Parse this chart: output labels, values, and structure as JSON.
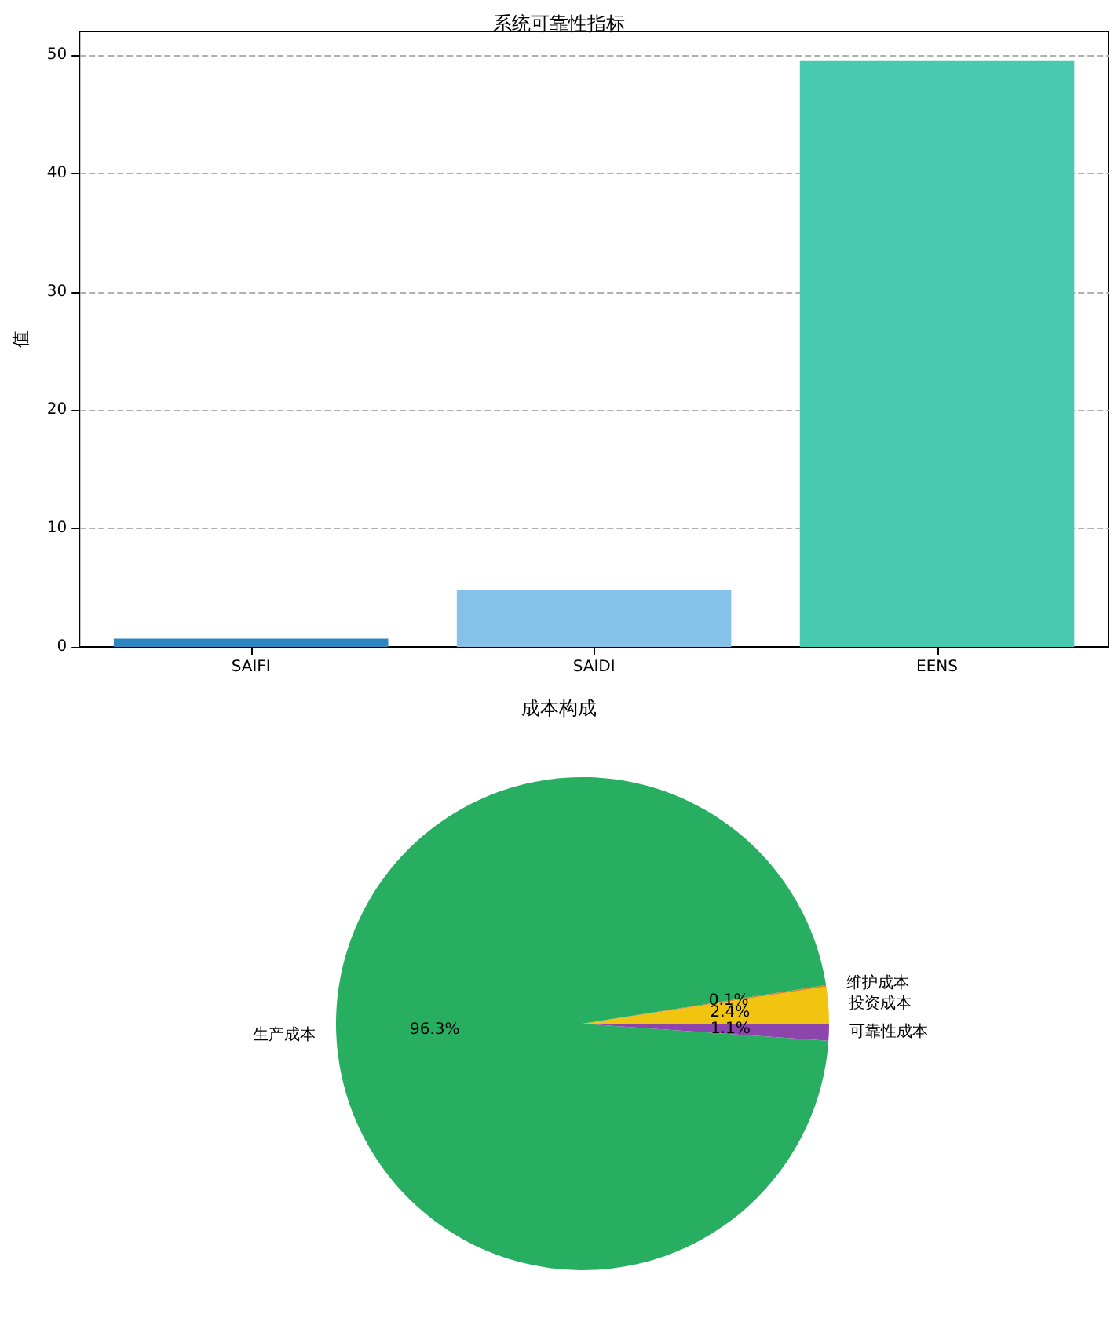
{
  "chart_data": [
    {
      "type": "bar",
      "title": "系统可靠性指标",
      "ylabel": "值",
      "categories": [
        "SAIFI",
        "SAIDI",
        "EENS"
      ],
      "values": [
        0.7,
        4.8,
        49.5
      ],
      "colors": [
        "#2e86c1",
        "#85c1e9",
        "#48c9b0"
      ],
      "ylim": [
        0,
        52
      ],
      "yticks": [
        0,
        10,
        20,
        30,
        40,
        50
      ],
      "grid": "y"
    },
    {
      "type": "pie",
      "title": "成本构成",
      "categories": [
        "投资成本",
        "维护成本",
        "生产成本",
        "可靠性成本"
      ],
      "values": [
        2.4,
        0.1,
        96.3,
        1.1
      ],
      "colors": [
        "#f1c40f",
        "#e67e22",
        "#27ae60",
        "#8e44ad"
      ],
      "value_labels": [
        "2.4%",
        "0.1%",
        "96.3%",
        "1.1%"
      ]
    }
  ]
}
